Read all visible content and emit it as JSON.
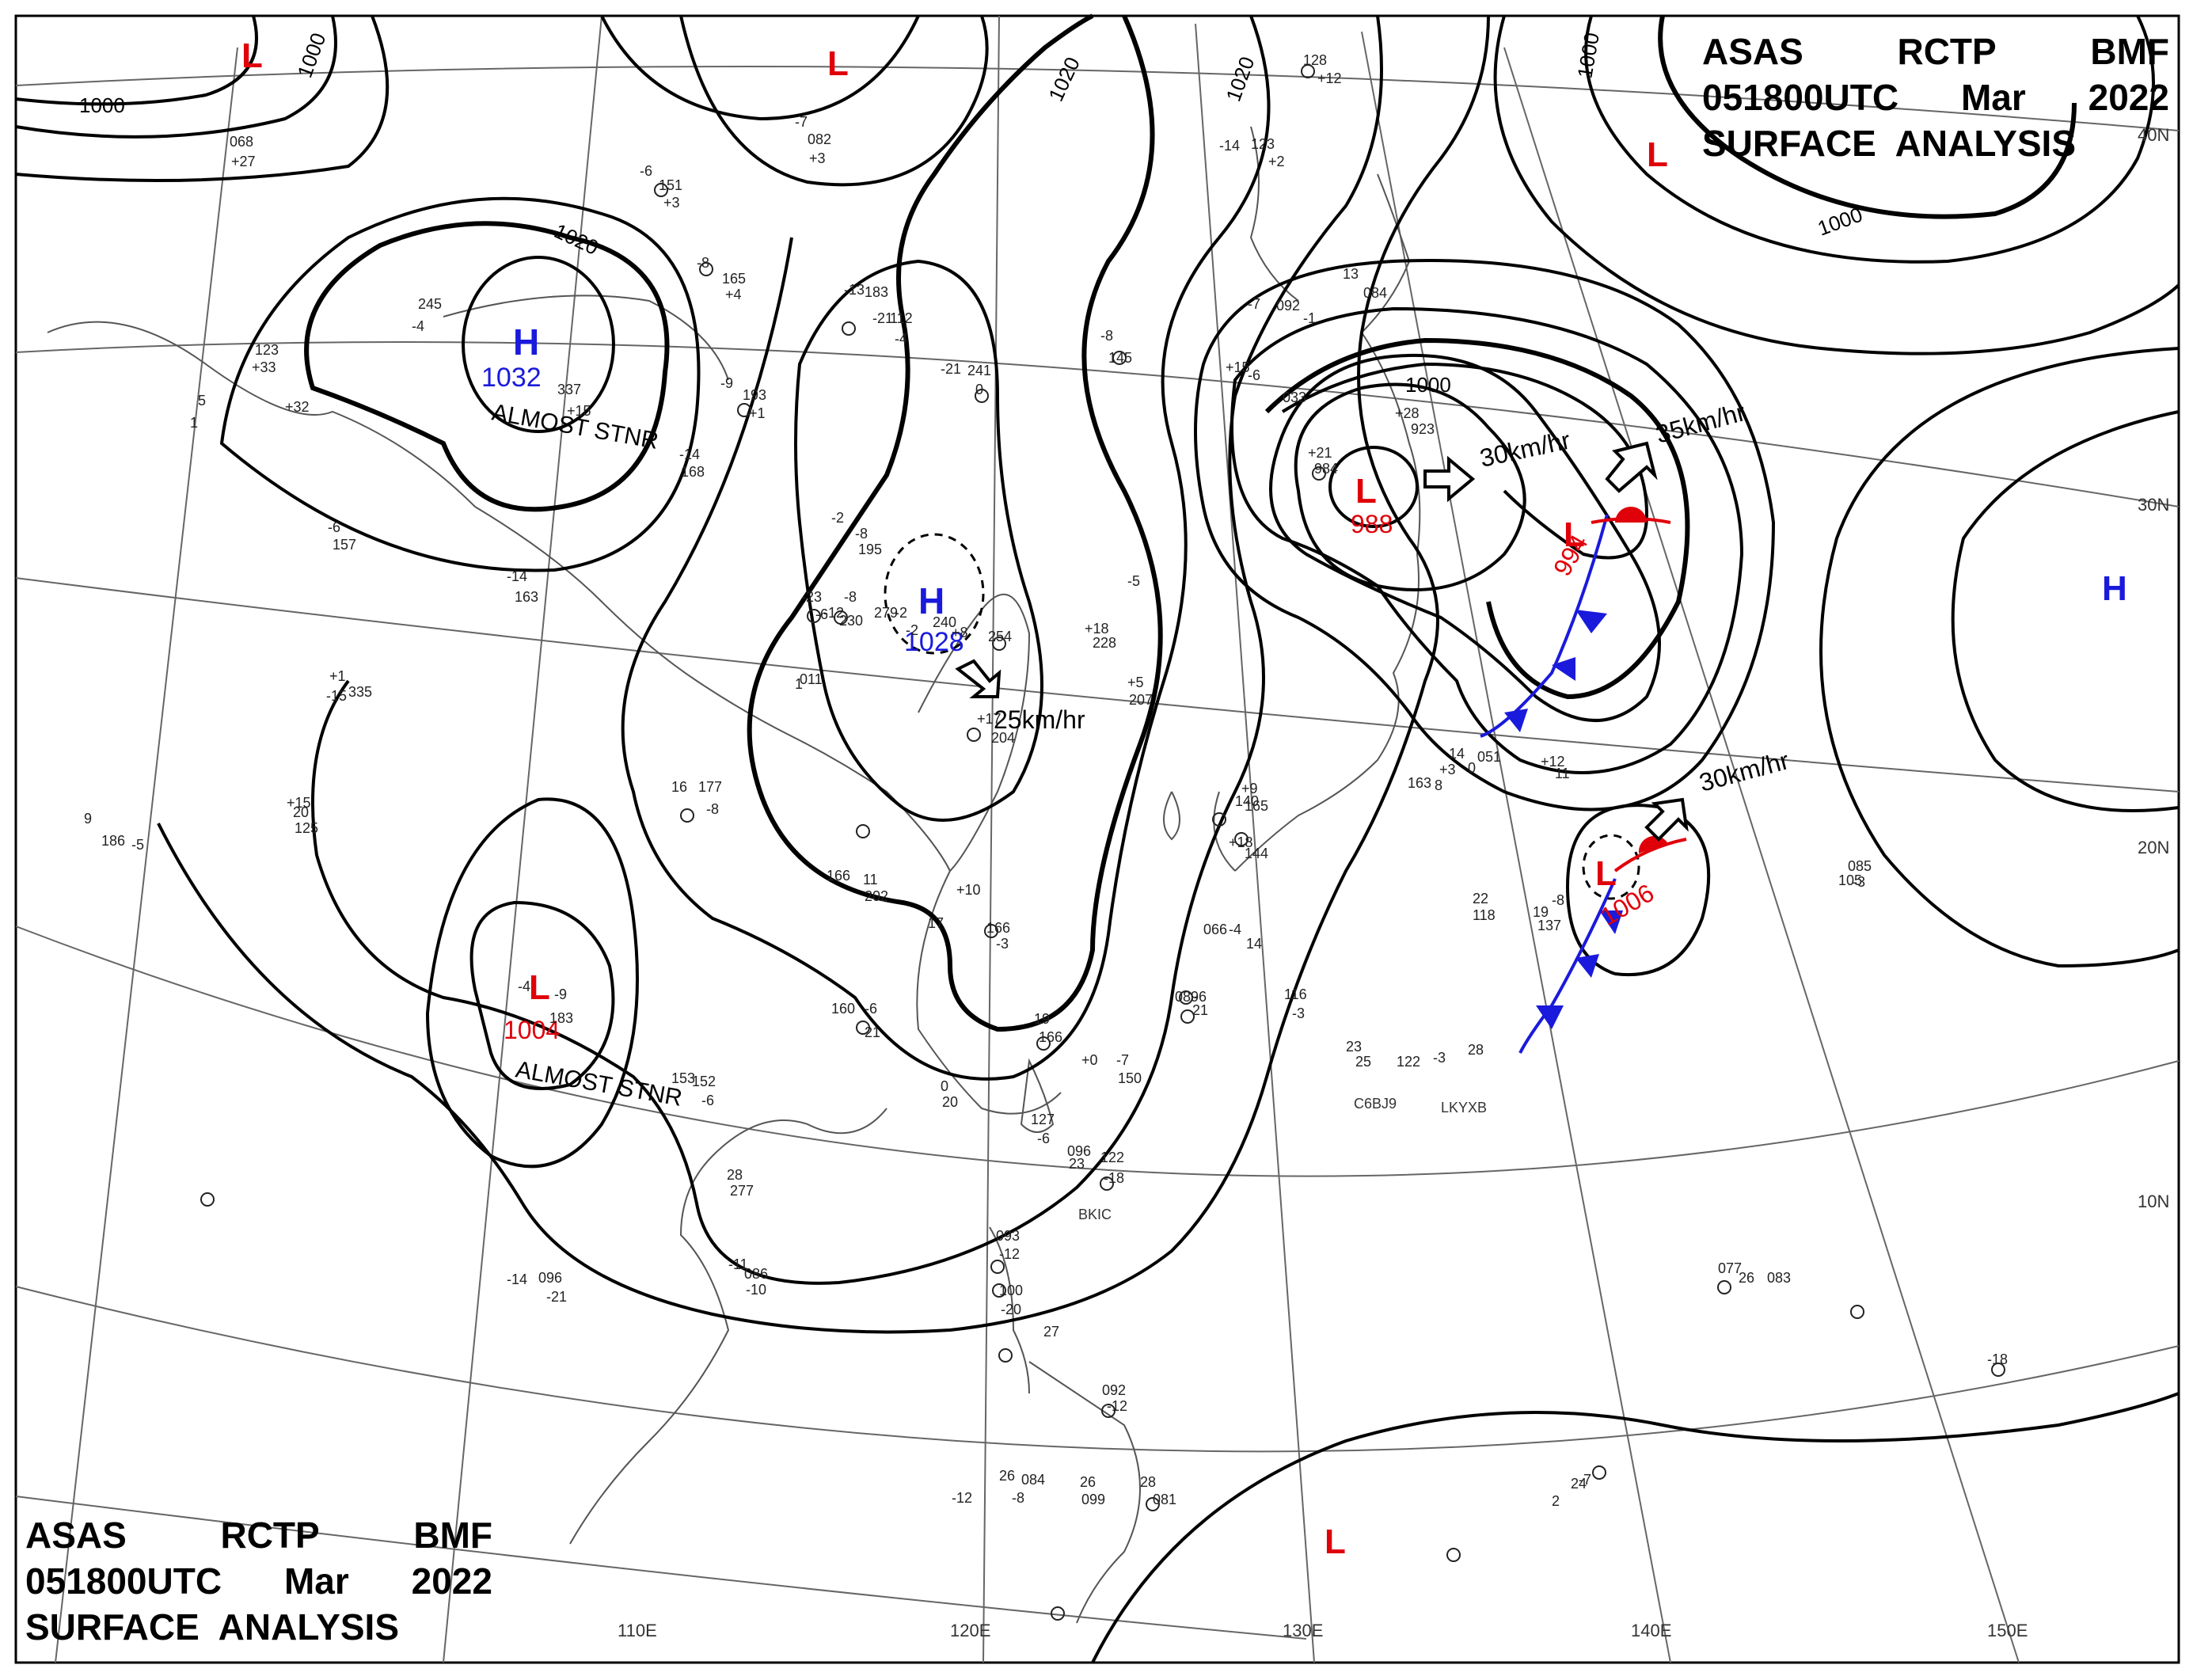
{
  "header": {
    "line1": [
      "ASAS",
      "RCTP",
      "BMF"
    ],
    "line2": [
      "051800UTC",
      "Mar",
      "2022"
    ],
    "line3": "SURFACE  ANALYSIS"
  },
  "colors": {
    "low": "#e0000a",
    "high": "#1a1adc",
    "isobar": "#000000",
    "geography": "#555555",
    "cold_front": "#1a1adc",
    "warm_front": "#e0000a"
  },
  "longitude_labels": [
    "110E",
    "120E",
    "130E",
    "140E",
    "150E"
  ],
  "latitude_labels": [
    "40N",
    "30N",
    "20N",
    "10N"
  ],
  "isobar_labels": [
    "1000",
    "1000",
    "1000",
    "1000",
    "1020",
    "1020",
    "1020",
    "1000"
  ],
  "systems": [
    {
      "type": "L",
      "pressure": "",
      "note": ""
    },
    {
      "type": "L",
      "pressure": "",
      "note": ""
    },
    {
      "type": "L",
      "pressure": "",
      "note": ""
    },
    {
      "type": "H",
      "pressure": "1032",
      "note": "ALMOST STNR"
    },
    {
      "type": "H",
      "pressure": "1028",
      "note": ""
    },
    {
      "type": "L",
      "pressure": "988",
      "note": ""
    },
    {
      "type": "L",
      "pressure": "994",
      "note": ""
    },
    {
      "type": "H",
      "pressure": "",
      "note": ""
    },
    {
      "type": "L",
      "pressure": "1006",
      "note": ""
    },
    {
      "type": "L",
      "pressure": "1004",
      "note": "ALMOST STNR"
    },
    {
      "type": "L",
      "pressure": "",
      "note": ""
    }
  ],
  "movements": [
    "25km/hr",
    "30km/hr",
    "35km/hr",
    "30km/hr"
  ],
  "ship_ids": [
    "C6BJ9",
    "LKYXB",
    "BKIC"
  ],
  "station_values": [
    "068",
    "+27",
    "-6",
    "151",
    "+3",
    "-8",
    "165",
    "+4",
    "-13",
    "183",
    "-21",
    "112",
    "-4",
    "-7",
    "082",
    "+3",
    "245",
    "-4",
    "123",
    "+33",
    "+32",
    "5",
    "1",
    "337",
    "+15",
    "-9",
    "193",
    "+1",
    "-21",
    "241",
    "0",
    "-14",
    "123",
    "+2",
    "128",
    "+12",
    "-7",
    "092",
    "-1",
    "13",
    "084",
    "-8",
    "145",
    "+15",
    "-6",
    "033",
    "+21",
    "984",
    "+28",
    "923",
    "-14",
    "168",
    "-6",
    "157",
    "-14",
    "163",
    "-2",
    "-8",
    "195",
    "-23",
    "-6",
    "230",
    "-12",
    "-8",
    "279",
    "-2",
    "-2",
    "240",
    "+8",
    "254",
    "+18",
    "228",
    "+1",
    "-15",
    "335",
    "+17",
    "204",
    "+5",
    "207",
    "-5",
    "011",
    "1",
    "14",
    "0",
    "051",
    "+12",
    "11",
    "+9",
    "165",
    "163",
    "+3",
    "8",
    "140",
    "+18",
    "144",
    "+15",
    "20",
    "125",
    "9",
    "186",
    "-5",
    "16",
    "177",
    "-8",
    "166",
    "11",
    "202",
    "+10",
    "17",
    "166",
    "-3",
    "066",
    "-4",
    "14",
    "19",
    "137",
    "-9",
    "183",
    "-4",
    "160",
    "-6",
    "21",
    "19",
    "166",
    "-7",
    "150",
    "+0",
    "089",
    "-6",
    "21",
    "116",
    "-3",
    "22",
    "118",
    "-8",
    "153",
    "152",
    "-6",
    "28",
    "277",
    "0",
    "20",
    "127",
    "-6",
    "23",
    "096",
    "122",
    "-18",
    "23",
    "25",
    "122",
    "-3",
    "28",
    "085",
    "-3",
    "105",
    "-11",
    "086",
    "-10",
    "-14",
    "096",
    "-21",
    "093",
    "-12",
    "100",
    "-20",
    "27",
    "092",
    "-12",
    "26",
    "084",
    "-8",
    "26",
    "099",
    "-12",
    "28",
    "081",
    "-7",
    "2",
    "24",
    "077",
    "26",
    "083",
    "-18"
  ]
}
